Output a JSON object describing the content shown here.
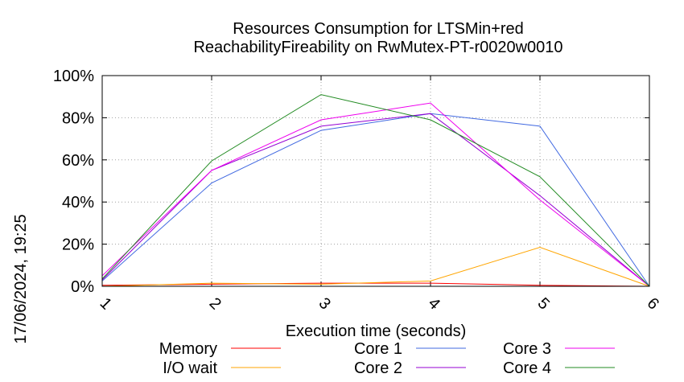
{
  "chart_data": {
    "type": "line",
    "title_line1": "Resources Consumption for LTSMin+red",
    "title_line2": "ReachabilityFireability on RwMutex-PT-r0020w0010",
    "xlabel": "Execution time (seconds)",
    "ylabel": "",
    "timestamp": "17/06/2024, 19:25",
    "xlim": [
      1,
      6
    ],
    "ylim": [
      0,
      100
    ],
    "x_ticks": [
      "1",
      "2",
      "3",
      "4",
      "5",
      "6"
    ],
    "y_ticks": [
      "0%",
      "20%",
      "40%",
      "60%",
      "80%",
      "100%"
    ],
    "grid": true,
    "legend_position": "bottom",
    "series": [
      {
        "name": "Memory",
        "color": "#ff0000",
        "x": [
          1,
          2,
          3,
          4,
          5,
          6
        ],
        "values": [
          0.5,
          1.0,
          1.5,
          1.5,
          0.5,
          0
        ]
      },
      {
        "name": "I/O wait",
        "color": "#ffa500",
        "x": [
          1,
          2,
          3,
          4,
          5,
          6
        ],
        "values": [
          0,
          1.5,
          1.0,
          2.5,
          18.5,
          0
        ]
      },
      {
        "name": "Core 1",
        "color": "#4169e1",
        "x": [
          1,
          2,
          3,
          4,
          5,
          6
        ],
        "values": [
          2.5,
          49,
          74,
          82,
          76,
          0
        ]
      },
      {
        "name": "Core 2",
        "color": "#9400d3",
        "x": [
          1,
          2,
          3,
          4,
          5,
          6
        ],
        "values": [
          3.0,
          55,
          76,
          82,
          43,
          0
        ]
      },
      {
        "name": "Core 3",
        "color": "#ee00ee",
        "x": [
          1,
          2,
          3,
          4,
          5,
          6
        ],
        "values": [
          5.0,
          55,
          79,
          87,
          41,
          0
        ]
      },
      {
        "name": "Core 4",
        "color": "#228b22",
        "x": [
          1,
          2,
          3,
          4,
          5,
          6
        ],
        "values": [
          3.5,
          59.5,
          91,
          79,
          52,
          0
        ]
      }
    ]
  }
}
